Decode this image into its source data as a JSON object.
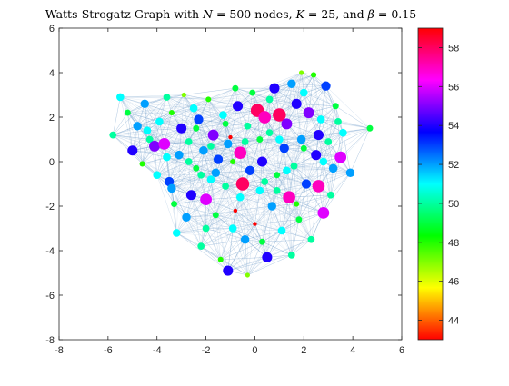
{
  "chart_data": {
    "type": "scatter",
    "title": "Watts-Strogatz Graph with N = 500 nodes, K = 25, and β = 0.15",
    "title_parts": {
      "prefix": "Watts-Strogatz Graph with ",
      "n_var": "N",
      "n_val": " = 500 nodes, ",
      "k_var": "K",
      "k_val": " = 25, and ",
      "b_var": "β",
      "b_val": " = 0.15"
    },
    "xlim": [
      -8,
      6
    ],
    "ylim": [
      -8,
      6
    ],
    "x_ticks": [
      "-8",
      "-6",
      "-4",
      "-2",
      "0",
      "2",
      "4",
      "6"
    ],
    "y_ticks": [
      "-8",
      "-6",
      "-4",
      "-2",
      "0",
      "2",
      "4",
      "6"
    ],
    "colorbar": {
      "colormap": "hsv",
      "range": [
        43,
        59
      ],
      "ticks": [
        "44",
        "46",
        "48",
        "50",
        "52",
        "54",
        "56",
        "58"
      ]
    },
    "edge_color": "#7fa6cf",
    "nodes": [
      {
        "x": -5.8,
        "y": 1.2,
        "deg": 50
      },
      {
        "x": -5.5,
        "y": 2.9,
        "deg": 51
      },
      {
        "x": -5.2,
        "y": 2.2,
        "deg": 49
      },
      {
        "x": -5.0,
        "y": 0.5,
        "deg": 54
      },
      {
        "x": -4.8,
        "y": 1.6,
        "deg": 52
      },
      {
        "x": -4.6,
        "y": -0.1,
        "deg": 48
      },
      {
        "x": -4.5,
        "y": 2.6,
        "deg": 52
      },
      {
        "x": -4.3,
        "y": 1.0,
        "deg": 50
      },
      {
        "x": -4.1,
        "y": 0.7,
        "deg": 55
      },
      {
        "x": -3.9,
        "y": 1.8,
        "deg": 51
      },
      {
        "x": -3.7,
        "y": 0.8,
        "deg": 56
      },
      {
        "x": -3.6,
        "y": 2.9,
        "deg": 50
      },
      {
        "x": -3.5,
        "y": -0.9,
        "deg": 53
      },
      {
        "x": -3.4,
        "y": 2.2,
        "deg": 48
      },
      {
        "x": -3.3,
        "y": -1.9,
        "deg": 49
      },
      {
        "x": -3.2,
        "y": -3.2,
        "deg": 51
      },
      {
        "x": -3.1,
        "y": 0.3,
        "deg": 52
      },
      {
        "x": -3.0,
        "y": 1.5,
        "deg": 54
      },
      {
        "x": -2.9,
        "y": 3.0,
        "deg": 47
      },
      {
        "x": -2.8,
        "y": -2.5,
        "deg": 52
      },
      {
        "x": -2.7,
        "y": 0.9,
        "deg": 50
      },
      {
        "x": -2.6,
        "y": -1.5,
        "deg": 54
      },
      {
        "x": -2.5,
        "y": 2.4,
        "deg": 51
      },
      {
        "x": -2.4,
        "y": -0.3,
        "deg": 49
      },
      {
        "x": -2.3,
        "y": 1.9,
        "deg": 53
      },
      {
        "x": -2.2,
        "y": -3.8,
        "deg": 50
      },
      {
        "x": -2.1,
        "y": 0.5,
        "deg": 52
      },
      {
        "x": -2.0,
        "y": -1.7,
        "deg": 56
      },
      {
        "x": -1.9,
        "y": 2.8,
        "deg": 48
      },
      {
        "x": -1.8,
        "y": -0.8,
        "deg": 51
      },
      {
        "x": -1.7,
        "y": 1.2,
        "deg": 55
      },
      {
        "x": -1.6,
        "y": -2.4,
        "deg": 49
      },
      {
        "x": -1.5,
        "y": 0.1,
        "deg": 53
      },
      {
        "x": -1.4,
        "y": -4.4,
        "deg": 48
      },
      {
        "x": -1.3,
        "y": 2.1,
        "deg": 51
      },
      {
        "x": -1.2,
        "y": -1.1,
        "deg": 50
      },
      {
        "x": -1.1,
        "y": 0.8,
        "deg": 52
      },
      {
        "x": -1.0,
        "y": 1.1,
        "deg": 43
      },
      {
        "x": -0.9,
        "y": -3.0,
        "deg": 51
      },
      {
        "x": -0.8,
        "y": -2.2,
        "deg": 43
      },
      {
        "x": -0.7,
        "y": 2.5,
        "deg": 54
      },
      {
        "x": -0.6,
        "y": 0.4,
        "deg": 57
      },
      {
        "x": -0.5,
        "y": -1.0,
        "deg": 58
      },
      {
        "x": -0.4,
        "y": -3.5,
        "deg": 52
      },
      {
        "x": -0.3,
        "y": 1.6,
        "deg": 50
      },
      {
        "x": -0.2,
        "y": -0.4,
        "deg": 53
      },
      {
        "x": -0.1,
        "y": 3.1,
        "deg": 49
      },
      {
        "x": 0.0,
        "y": -2.8,
        "deg": 43
      },
      {
        "x": 0.1,
        "y": 2.3,
        "deg": 58
      },
      {
        "x": 0.2,
        "y": -1.3,
        "deg": 51
      },
      {
        "x": 0.3,
        "y": 0.0,
        "deg": 54
      },
      {
        "x": 0.4,
        "y": 2.0,
        "deg": 57
      },
      {
        "x": 0.5,
        "y": -4.3,
        "deg": 54
      },
      {
        "x": 0.6,
        "y": 1.3,
        "deg": 50
      },
      {
        "x": 0.7,
        "y": -2.0,
        "deg": 52
      },
      {
        "x": 0.8,
        "y": 3.3,
        "deg": 54
      },
      {
        "x": 0.9,
        "y": -0.6,
        "deg": 49
      },
      {
        "x": 1.0,
        "y": 2.1,
        "deg": 58
      },
      {
        "x": 1.1,
        "y": -3.1,
        "deg": 51
      },
      {
        "x": 1.2,
        "y": 0.6,
        "deg": 53
      },
      {
        "x": 1.3,
        "y": 1.7,
        "deg": 55
      },
      {
        "x": 1.4,
        "y": -1.6,
        "deg": 57
      },
      {
        "x": 1.5,
        "y": 3.5,
        "deg": 52
      },
      {
        "x": 1.6,
        "y": -0.2,
        "deg": 50
      },
      {
        "x": 1.7,
        "y": 2.6,
        "deg": 54
      },
      {
        "x": 1.8,
        "y": -2.6,
        "deg": 49
      },
      {
        "x": 1.9,
        "y": 1.0,
        "deg": 52
      },
      {
        "x": 2.0,
        "y": 3.1,
        "deg": 51
      },
      {
        "x": 2.1,
        "y": -1.0,
        "deg": 53
      },
      {
        "x": 2.2,
        "y": 2.2,
        "deg": 55
      },
      {
        "x": 2.3,
        "y": -3.5,
        "deg": 50
      },
      {
        "x": 2.4,
        "y": 3.9,
        "deg": 48
      },
      {
        "x": 2.5,
        "y": 0.3,
        "deg": 54
      },
      {
        "x": 2.6,
        "y": -1.1,
        "deg": 57
      },
      {
        "x": 2.7,
        "y": 1.9,
        "deg": 51
      },
      {
        "x": 2.8,
        "y": -2.3,
        "deg": 56
      },
      {
        "x": 2.9,
        "y": 3.4,
        "deg": 53
      },
      {
        "x": 3.0,
        "y": 0.9,
        "deg": 50
      },
      {
        "x": 3.2,
        "y": -0.3,
        "deg": 52
      },
      {
        "x": 3.3,
        "y": 2.5,
        "deg": 49
      },
      {
        "x": 3.5,
        "y": 0.2,
        "deg": 56
      },
      {
        "x": 3.6,
        "y": 1.3,
        "deg": 51
      },
      {
        "x": 3.9,
        "y": -0.5,
        "deg": 52
      },
      {
        "x": 4.7,
        "y": 1.5,
        "deg": 49
      },
      {
        "x": -0.3,
        "y": -5.1,
        "deg": 47
      },
      {
        "x": -1.1,
        "y": -4.9,
        "deg": 54
      },
      {
        "x": 2.6,
        "y": 1.2,
        "deg": 54
      },
      {
        "x": -4.0,
        "y": -0.6,
        "deg": 51
      },
      {
        "x": -2.7,
        "y": 0.0,
        "deg": 50
      },
      {
        "x": -1.6,
        "y": -0.5,
        "deg": 52
      },
      {
        "x": -0.9,
        "y": 0.0,
        "deg": 48
      },
      {
        "x": 0.4,
        "y": -0.9,
        "deg": 50
      },
      {
        "x": 1.3,
        "y": -0.4,
        "deg": 51
      },
      {
        "x": 2.0,
        "y": 0.6,
        "deg": 49
      },
      {
        "x": -2.2,
        "y": -0.6,
        "deg": 50
      },
      {
        "x": -3.6,
        "y": 0.2,
        "deg": 51
      },
      {
        "x": 0.2,
        "y": 1.0,
        "deg": 49
      },
      {
        "x": 1.0,
        "y": 1.0,
        "deg": 51
      },
      {
        "x": -0.4,
        "y": 0.9,
        "deg": 50
      },
      {
        "x": -1.2,
        "y": 1.7,
        "deg": 49
      },
      {
        "x": 0.9,
        "y": -1.3,
        "deg": 50
      },
      {
        "x": -0.6,
        "y": -1.6,
        "deg": 51
      },
      {
        "x": 1.7,
        "y": -1.9,
        "deg": 48
      },
      {
        "x": -2.0,
        "y": -3.0,
        "deg": 50
      },
      {
        "x": 0.3,
        "y": -3.6,
        "deg": 49
      },
      {
        "x": 1.5,
        "y": -4.2,
        "deg": 50
      },
      {
        "x": -3.4,
        "y": -1.2,
        "deg": 52
      },
      {
        "x": 3.1,
        "y": -1.5,
        "deg": 50
      },
      {
        "x": -1.8,
        "y": 0.7,
        "deg": 50
      },
      {
        "x": 2.8,
        "y": 0.0,
        "deg": 51
      },
      {
        "x": -4.4,
        "y": 1.4,
        "deg": 51
      },
      {
        "x": 3.4,
        "y": 1.8,
        "deg": 50
      },
      {
        "x": -0.8,
        "y": 3.3,
        "deg": 49
      },
      {
        "x": 1.9,
        "y": 4.0,
        "deg": 47
      },
      {
        "x": 0.6,
        "y": 2.8,
        "deg": 50
      },
      {
        "x": -2.4,
        "y": 1.5,
        "deg": 49
      }
    ]
  }
}
